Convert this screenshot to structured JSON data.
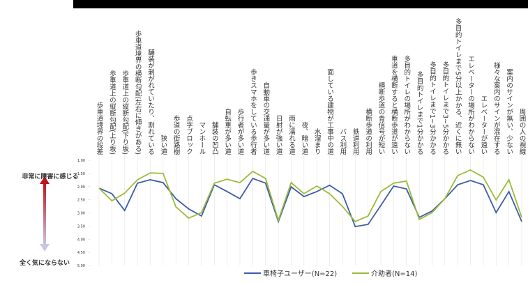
{
  "chart_data": {
    "type": "line",
    "categories": [
      "歩車道境界の段差",
      "歩車道上の縦断勾配(上り坂)",
      "歩車道上の縦断勾配(下り坂)",
      "歩車道境界の横断勾配(左右に傾きがある)",
      "舗装が剥がれていたり、割れている",
      "狭い道",
      "歩道の街路樹",
      "点字ブロック",
      "マンホール",
      "舗装の凹凸",
      "自転車が多い道",
      "歩行者が多い道",
      "歩きスマホをしている歩行者",
      "自動車の交通量が多い道",
      "日射が強い道",
      "雨に濡れる道",
      "夜、暗い道",
      "水溜まり",
      "面している建物が工事中の道",
      "バス利用",
      "鉄道利用",
      "横断歩道の利用",
      "横断歩道の青信号が短い",
      "車道を横断すると横断歩道が遠い",
      "多目的トイレの場所がわからない",
      "多目的トイレまで1分かかる",
      "多目的トイレまで1~3分かかる",
      "多目的トイレまで3~5分かかる",
      "多目的トイレまで5分以上かかる、近くに無い",
      "エレベーターの場所がわからない",
      "エレベーターが遠い",
      "様々な案内のサインが混在する",
      "案内のサインが無い、少ない",
      "周囲の人の視線"
    ],
    "series": [
      {
        "name": "車椅子ユーザー(N=22)",
        "color": "#3e5ba6",
        "values": [
          2.06,
          2.27,
          2.91,
          1.87,
          1.74,
          1.85,
          2.46,
          2.85,
          3.12,
          1.93,
          2.19,
          2.46,
          1.69,
          1.87,
          3.33,
          2.01,
          2.38,
          2.19,
          1.95,
          2.27,
          3.52,
          3.44,
          2.72,
          1.98,
          2.09,
          3.17,
          2.93,
          2.46,
          1.93,
          1.77,
          1.93,
          2.99,
          2.19,
          3.33
        ]
      },
      {
        "name": "介助者(N=14)",
        "color": "#9bbb3a",
        "values": [
          2.06,
          2.54,
          2.25,
          1.74,
          1.48,
          1.5,
          2.77,
          3.2,
          2.99,
          1.87,
          1.72,
          1.85,
          1.42,
          1.69,
          3.28,
          1.85,
          2.27,
          1.98,
          2.27,
          2.75,
          3.33,
          3.12,
          2.19,
          1.87,
          1.79,
          3.25,
          2.99,
          2.46,
          1.58,
          1.37,
          1.64,
          2.51,
          1.74,
          3.17
        ]
      }
    ],
    "ylim": [
      5,
      1
    ],
    "yticks": [
      {
        "value": 1,
        "label": "1.00"
      },
      {
        "value": 1.5,
        "label": "1.50"
      },
      {
        "value": 2,
        "label": "2.00"
      },
      {
        "value": 2.5,
        "label": "2.50"
      },
      {
        "value": 3,
        "label": "3.00"
      },
      {
        "value": 3.5,
        "label": "3.50"
      },
      {
        "value": 4,
        "label": "4.00"
      },
      {
        "value": 4.5,
        "label": "4.50"
      },
      {
        "value": 5,
        "label": "5.00"
      }
    ],
    "annotations": [
      "非常に障害に感じる",
      "全く気にならない"
    ]
  }
}
